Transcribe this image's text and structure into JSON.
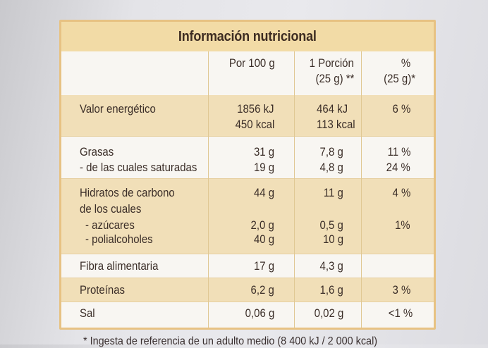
{
  "title": "Información nutricional",
  "headers": {
    "per100": "Por 100 g",
    "portion_line1": "1 Porción",
    "portion_line2": "(25 g) **",
    "pct_line1": "%",
    "pct_line2": "(25 g)*"
  },
  "rows": {
    "energy": {
      "label": "Valor energético",
      "per100_kj": "1856 kJ",
      "per100_kcal": "450 kcal",
      "portion_kj": "464 kJ",
      "portion_kcal": "113 kcal",
      "pct": "6 %"
    },
    "fat": {
      "label": "Grasas",
      "per100": "31 g",
      "portion": "7,8 g",
      "pct": "11 %"
    },
    "saturated": {
      "label": "- de las cuales saturadas",
      "per100": "19 g",
      "portion": "4,8 g",
      "pct": "24 %"
    },
    "carbs": {
      "label": "Hidratos de carbono",
      "per100": "44 g",
      "portion": "11 g",
      "pct": "4 %"
    },
    "of_which": {
      "label": "de los cuales"
    },
    "sugars": {
      "label": "- azúcares",
      "per100": "2,0 g",
      "portion": "0,5 g",
      "pct": "1%"
    },
    "polyols": {
      "label": "- polialcoholes",
      "per100": "40 g",
      "portion": "10 g"
    },
    "fibre": {
      "label": "Fibra alimentaria",
      "per100": "17 g",
      "portion": "4,3 g"
    },
    "protein": {
      "label": "Proteínas",
      "per100": "6,2 g",
      "portion": "1,6 g",
      "pct": "3 %"
    },
    "salt": {
      "label": "Sal",
      "per100": "0,06 g",
      "portion": "0,02 g",
      "pct": "<1 %"
    }
  },
  "footnote": "* Ingesta de referencia de un adulto medio (8 400 kJ / 2 000 kcal)",
  "colors": {
    "border": "#e7c283",
    "shade": "#f1dfb8",
    "title_bg": "#f2dba6",
    "text": "#3b2e28"
  }
}
